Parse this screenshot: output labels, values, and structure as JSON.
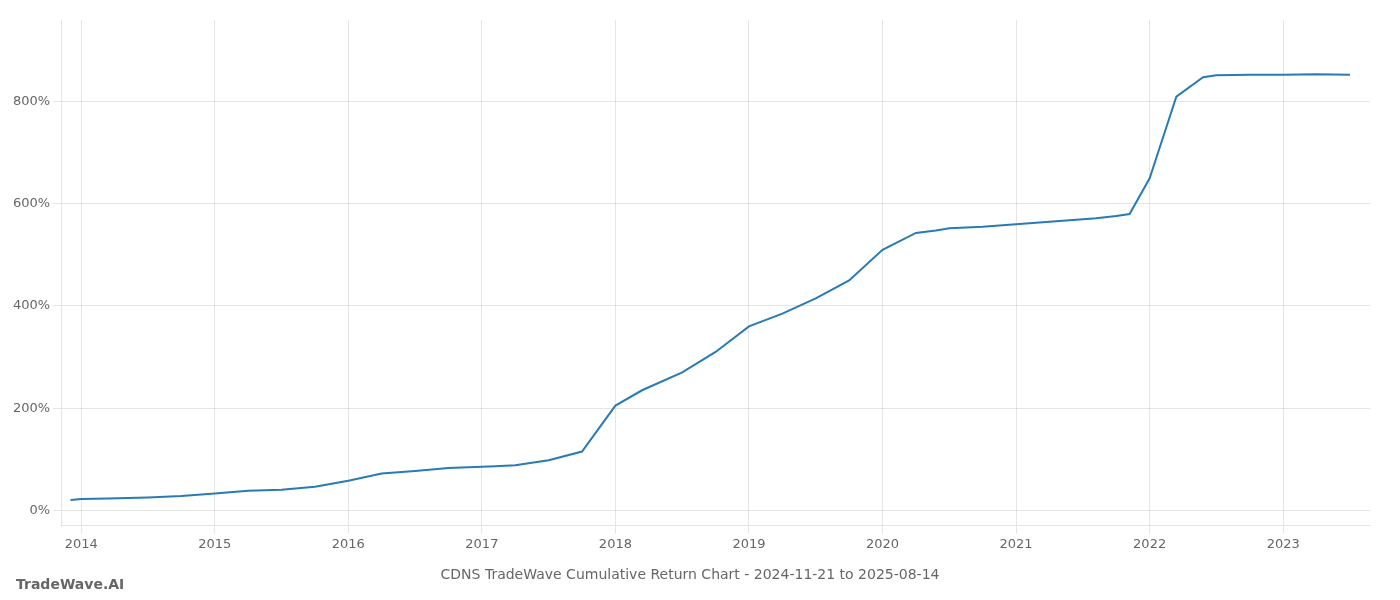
{
  "chart_data": {
    "type": "line",
    "title": "CDNS TradeWave Cumulative Return Chart - 2024-11-21 to 2025-08-14",
    "annotations": [
      "TradeWave.AI"
    ],
    "x": [
      2013.92,
      2014.0,
      2014.2,
      2014.5,
      2014.75,
      2015.0,
      2015.25,
      2015.5,
      2015.75,
      2016.0,
      2016.25,
      2016.5,
      2016.75,
      2017.0,
      2017.1,
      2017.25,
      2017.5,
      2017.75,
      2018.0,
      2018.2,
      2018.5,
      2018.75,
      2019.0,
      2019.25,
      2019.5,
      2019.75,
      2020.0,
      2020.25,
      2020.4,
      2020.5,
      2020.75,
      2021.0,
      2021.25,
      2021.5,
      2021.6,
      2021.75,
      2021.85,
      2022.0,
      2022.1,
      2022.2,
      2022.4,
      2022.5,
      2022.75,
      2023.0,
      2023.25,
      2023.5
    ],
    "values": [
      20,
      22,
      23,
      25,
      28,
      33,
      38,
      40,
      46,
      58,
      72,
      77,
      83,
      85,
      86,
      88,
      98,
      115,
      205,
      235,
      270,
      310,
      360,
      385,
      415,
      450,
      510,
      543,
      548,
      552,
      555,
      560,
      565,
      570,
      572,
      576,
      580,
      650,
      730,
      810,
      848,
      852,
      853,
      853,
      854,
      853
    ],
    "color": "#2a7ab5",
    "xlim": [
      2013.85,
      2023.65
    ],
    "xticks": [
      2014,
      2015,
      2016,
      2017,
      2018,
      2019,
      2020,
      2021,
      2022,
      2023
    ],
    "ylim": [
      -30,
      960
    ],
    "yticks": [
      {
        "value": 0,
        "label": "0%"
      },
      {
        "value": 200,
        "label": "200%"
      },
      {
        "value": 400,
        "label": "400%"
      },
      {
        "value": 600,
        "label": "600%"
      },
      {
        "value": 800,
        "label": "800%"
      }
    ],
    "grid": true
  }
}
